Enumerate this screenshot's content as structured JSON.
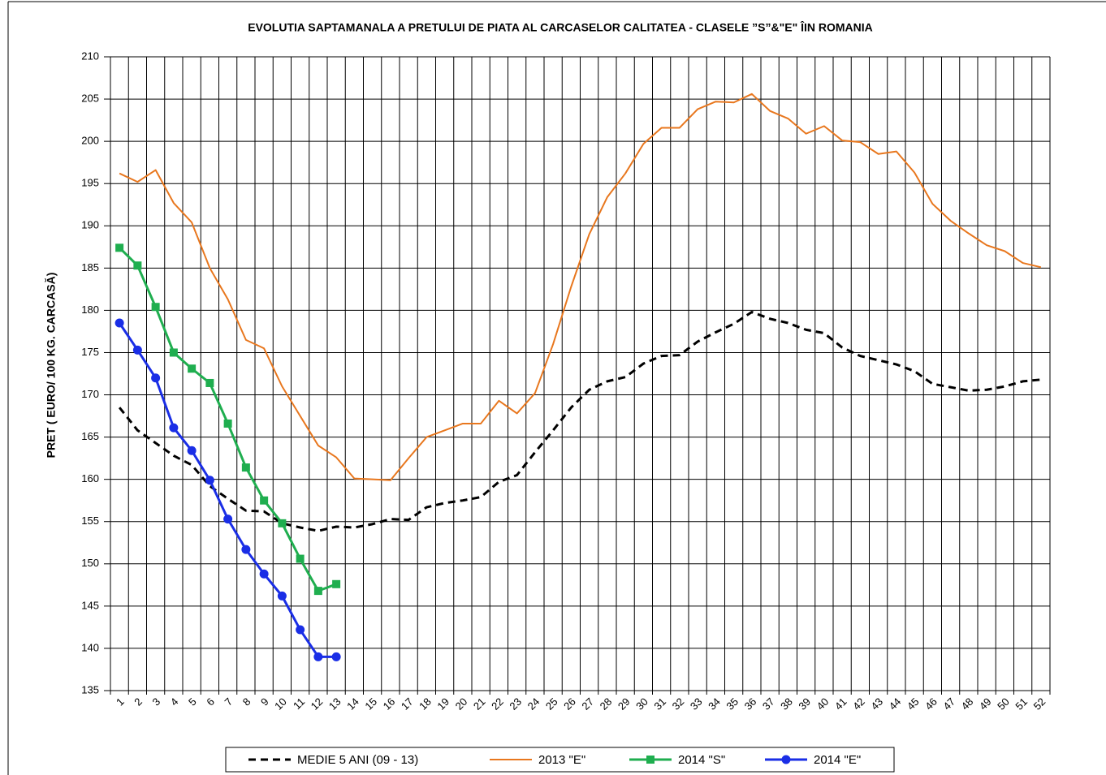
{
  "chart_data": {
    "type": "line",
    "title": "EVOLUTIA SAPTAMANALA  A PRETULUI  DE PIATA  AL CARCASELOR  CALITATEA  - CLASELE ”S”&\"E\"  ÎIN ROMANIA",
    "y_label": "PRET ( EURO/ 100 KG. CARCASĂ)",
    "categories": [
      "1",
      "2",
      "3",
      "4",
      "5",
      "6",
      "7",
      "8",
      "9",
      "10",
      "11",
      "12",
      "13",
      "14",
      "15",
      "16",
      "17",
      "18",
      "19",
      "20",
      "21",
      "22",
      "23",
      "24",
      "25",
      "26",
      "27",
      "28",
      "29",
      "30",
      "31",
      "32",
      "33",
      "34",
      "35",
      "36",
      "37",
      "38",
      "39",
      "40",
      "41",
      "42",
      "43",
      "44",
      "45",
      "46",
      "47",
      "48",
      "49",
      "50",
      "51",
      "52"
    ],
    "ylim": [
      135,
      210
    ],
    "yticks": [
      135,
      140,
      145,
      150,
      155,
      160,
      165,
      170,
      175,
      180,
      185,
      190,
      195,
      200,
      205,
      210
    ],
    "grid": true,
    "legend": "bottom",
    "series": [
      {
        "name": "MEDIE 5 ANI (09 - 13)",
        "color": "#000000",
        "linestyle": "dashed",
        "width": 3,
        "marker": "none",
        "values": [
          168.5,
          165.8,
          164.3,
          162.8,
          161.7,
          159.2,
          157.7,
          156.3,
          156.2,
          154.8,
          154.3,
          153.9,
          154.4,
          154.3,
          154.7,
          155.3,
          155.2,
          156.7,
          157.2,
          157.5,
          157.9,
          159.7,
          160.5,
          163.2,
          165.8,
          168.5,
          170.6,
          171.6,
          172.1,
          173.7,
          174.6,
          174.7,
          176.3,
          177.4,
          178.4,
          179.8,
          179.0,
          178.5,
          177.7,
          177.3,
          175.6,
          174.6,
          174.1,
          173.6,
          172.8,
          171.3,
          170.9,
          170.5,
          170.6,
          171.0,
          171.6,
          171.8
        ]
      },
      {
        "name": "2013 \"E\"",
        "color": "#e8771e",
        "linestyle": "solid",
        "width": 2,
        "marker": "none",
        "values": [
          196.2,
          195.2,
          196.6,
          192.7,
          190.4,
          185.0,
          181.3,
          176.5,
          175.5,
          171.0,
          167.5,
          164.0,
          162.6,
          160.1,
          160.0,
          159.9,
          162.5,
          165.0,
          165.8,
          166.6,
          166.6,
          169.3,
          167.8,
          170.2,
          176.0,
          182.8,
          189.0,
          193.4,
          196.2,
          199.7,
          201.6,
          201.6,
          203.8,
          204.7,
          204.6,
          205.6,
          203.6,
          202.7,
          200.9,
          201.8,
          200.1,
          199.9,
          198.5,
          198.8,
          196.3,
          192.6,
          190.6,
          189.1,
          187.7,
          187.0,
          185.6,
          185.1
        ]
      },
      {
        "name": "2014 \"S\"",
        "color": "#1fae4f",
        "linestyle": "solid",
        "width": 3,
        "marker": "square",
        "values": [
          187.4,
          185.3,
          180.4,
          175.0,
          173.1,
          171.4,
          166.6,
          161.4,
          157.5,
          154.8,
          150.6,
          146.8,
          147.6,
          null,
          null,
          null,
          null,
          null,
          null,
          null,
          null,
          null,
          null,
          null,
          null,
          null,
          null,
          null,
          null,
          null,
          null,
          null,
          null,
          null,
          null,
          null,
          null,
          null,
          null,
          null,
          null,
          null,
          null,
          null,
          null,
          null,
          null,
          null,
          null,
          null,
          null,
          null
        ]
      },
      {
        "name": "2014 \"E\"",
        "color": "#1a2ee6",
        "linestyle": "solid",
        "width": 3,
        "marker": "circle",
        "values": [
          178.5,
          175.3,
          172.0,
          166.1,
          163.4,
          159.9,
          155.3,
          151.7,
          148.8,
          146.2,
          142.2,
          139.0,
          139.0,
          null,
          null,
          null,
          null,
          null,
          null,
          null,
          null,
          null,
          null,
          null,
          null,
          null,
          null,
          null,
          null,
          null,
          null,
          null,
          null,
          null,
          null,
          null,
          null,
          null,
          null,
          null,
          null,
          null,
          null,
          null,
          null,
          null,
          null,
          null,
          null,
          null,
          null,
          null
        ]
      }
    ]
  }
}
